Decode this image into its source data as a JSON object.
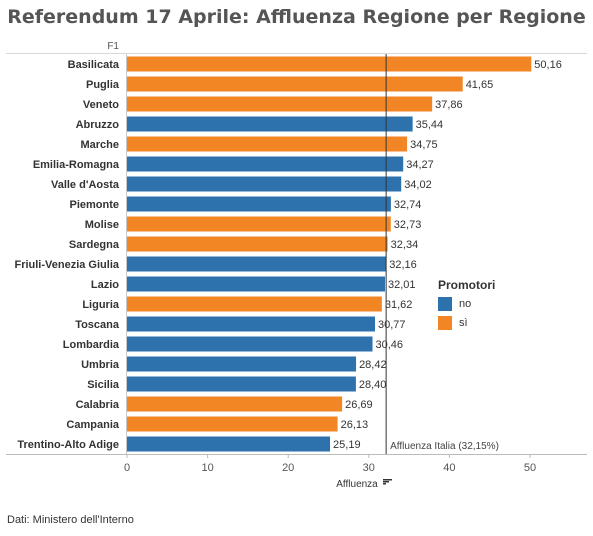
{
  "title": "Referendum 17 Aprile: Affluenza Regione per Regione",
  "source": "Dati: Ministero dell'Interno",
  "colors": {
    "no": "#2d72ac",
    "si": "#f28625"
  },
  "legend": {
    "title": "Promotori",
    "items": [
      {
        "key": "no",
        "label": "no"
      },
      {
        "key": "si",
        "label": "sì"
      }
    ]
  },
  "chart_data": {
    "type": "bar",
    "orientation": "horizontal",
    "row_header": "F1",
    "xlabel": "Affluenza",
    "xlim": [
      0,
      55
    ],
    "xticks": [
      0,
      10,
      20,
      30,
      40,
      50
    ],
    "grid": false,
    "legend_position": "right",
    "reference_line": {
      "value": 32.15,
      "label": "Affluenza Italia (32,15%)"
    },
    "categories": [
      "Basilicata",
      "Puglia",
      "Veneto",
      "Abruzzo",
      "Marche",
      "Emilia-Romagna",
      "Valle d'Aosta",
      "Piemonte",
      "Molise",
      "Sardegna",
      "Friuli-Venezia Giulia",
      "Lazio",
      "Liguria",
      "Toscana",
      "Lombardia",
      "Umbria",
      "Sicilia",
      "Calabria",
      "Campania",
      "Trentino-Alto Adige"
    ],
    "values": [
      50.16,
      41.65,
      37.86,
      35.44,
      34.75,
      34.27,
      34.02,
      32.74,
      32.73,
      32.34,
      32.16,
      32.01,
      31.62,
      30.77,
      30.46,
      28.42,
      28.4,
      26.69,
      26.13,
      25.19
    ],
    "labels": [
      "50,16",
      "41,65",
      "37,86",
      "35,44",
      "34,75",
      "34,27",
      "34,02",
      "32,74",
      "32,73",
      "32,34",
      "32,16",
      "32,01",
      "31,62",
      "30,77",
      "30,46",
      "28,42",
      "28,40",
      "26,69",
      "26,13",
      "25,19"
    ],
    "promotori": [
      "si",
      "si",
      "si",
      "no",
      "si",
      "no",
      "no",
      "no",
      "si",
      "si",
      "no",
      "no",
      "si",
      "no",
      "no",
      "no",
      "no",
      "si",
      "si",
      "no"
    ]
  }
}
